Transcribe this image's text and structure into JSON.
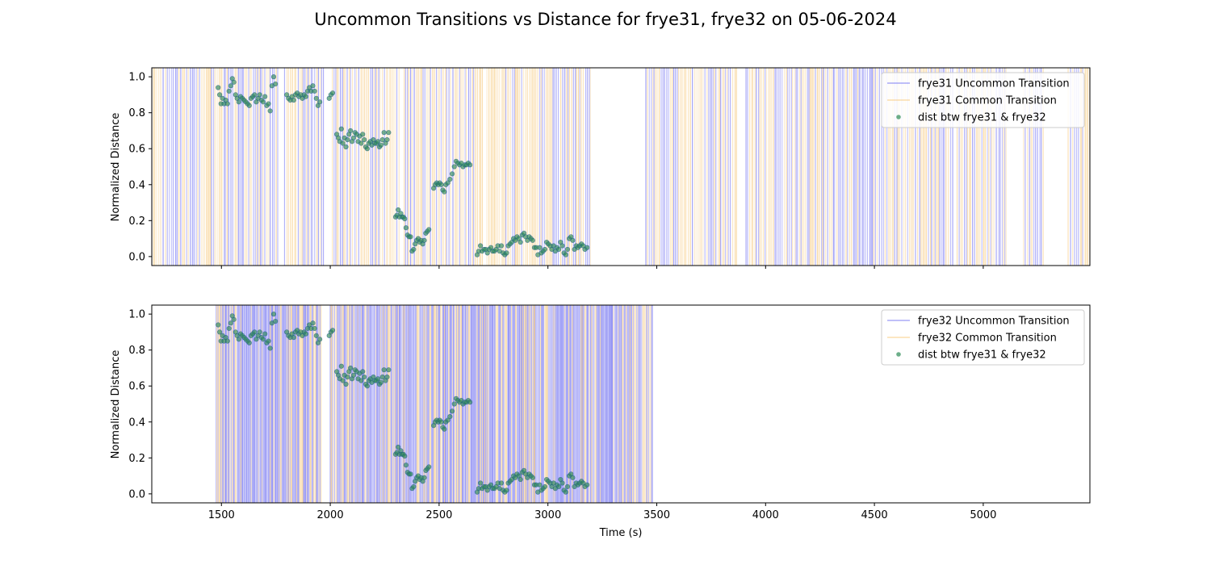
{
  "figure": {
    "title": "Uncommon Transitions vs Distance for frye31, frye32 on 05-06-2024"
  },
  "chart_data": [
    {
      "type": "scatter",
      "panel": "top",
      "xlabel": "",
      "ylabel": "Normalized Distance",
      "xlim": [
        1180,
        5490
      ],
      "ylim": [
        -0.05,
        1.05
      ],
      "xticks": [
        1500,
        2000,
        2500,
        3000,
        3500,
        4000,
        4500,
        5000
      ],
      "xtick_labels_visible": false,
      "yticks": [
        0.0,
        0.2,
        0.4,
        0.6,
        0.8,
        1.0
      ],
      "ytick_labels": [
        "0.0",
        "0.2",
        "0.4",
        "0.6",
        "0.8",
        "1.0"
      ],
      "legend_position": "upper-right",
      "legend": [
        "frye31 Uncommon Transition",
        "frye31 Common Transition",
        "dist btw frye31 & frye32"
      ],
      "colors": {
        "uncommon": "#6464f0",
        "common": "#f5c26b",
        "distance": "#2e8b57"
      },
      "vertical_lines": {
        "ranges": [
          [
            1180,
            1760
          ],
          [
            1790,
            1970
          ],
          [
            2010,
            2325
          ],
          [
            2340,
            2700
          ],
          [
            2720,
            3195
          ],
          [
            3450,
            3870
          ],
          [
            3910,
            4860
          ],
          [
            4880,
            5110
          ],
          [
            5185,
            5280
          ],
          [
            5390,
            5490
          ]
        ],
        "spacing": 8,
        "uncommon_fraction": 0.45
      },
      "series": [
        {
          "name": "dist btw frye31 & frye32",
          "points": []
        }
      ]
    },
    {
      "type": "scatter",
      "panel": "bottom",
      "xlabel": "Time (s)",
      "ylabel": "Normalized Distance",
      "xlim": [
        1180,
        5490
      ],
      "ylim": [
        -0.05,
        1.05
      ],
      "xticks": [
        1500,
        2000,
        2500,
        3000,
        3500,
        4000,
        4500,
        5000
      ],
      "xtick_labels": [
        "1500",
        "2000",
        "2500",
        "3000",
        "3500",
        "4000",
        "4500",
        "5000"
      ],
      "yticks": [
        0.0,
        0.2,
        0.4,
        0.6,
        0.8,
        1.0
      ],
      "ytick_labels": [
        "0.0",
        "0.2",
        "0.4",
        "0.6",
        "0.8",
        "1.0"
      ],
      "legend_position": "upper-right",
      "legend": [
        "frye32 Uncommon Transition",
        "frye32 Common Transition",
        "dist btw frye31 & frye32"
      ],
      "colors": {
        "uncommon": "#6464f0",
        "common": "#f5c26b",
        "distance": "#2e8b57"
      },
      "vertical_lines": {
        "ranges": [
          [
            1475,
            1960
          ],
          [
            2000,
            3480
          ]
        ],
        "spacing": 4,
        "uncommon_fraction": 0.7
      },
      "series": [
        {
          "name": "dist btw frye31 & frye32",
          "points": []
        }
      ]
    }
  ],
  "distance_points": [
    [
      1485,
      0.94
    ],
    [
      1492,
      0.9
    ],
    [
      1498,
      0.85
    ],
    [
      1505,
      0.88
    ],
    [
      1512,
      0.85
    ],
    [
      1520,
      0.87
    ],
    [
      1528,
      0.85
    ],
    [
      1535,
      0.92
    ],
    [
      1543,
      0.95
    ],
    [
      1550,
      0.99
    ],
    [
      1557,
      0.97
    ],
    [
      1565,
      0.9
    ],
    [
      1572,
      0.88
    ],
    [
      1580,
      0.86
    ],
    [
      1588,
      0.89
    ],
    [
      1596,
      0.88
    ],
    [
      1604,
      0.87
    ],
    [
      1612,
      0.86
    ],
    [
      1620,
      0.85
    ],
    [
      1628,
      0.84
    ],
    [
      1636,
      0.88
    ],
    [
      1644,
      0.89
    ],
    [
      1652,
      0.9
    ],
    [
      1660,
      0.86
    ],
    [
      1668,
      0.88
    ],
    [
      1676,
      0.9
    ],
    [
      1684,
      0.87
    ],
    [
      1692,
      0.86
    ],
    [
      1700,
      0.89
    ],
    [
      1708,
      0.84
    ],
    [
      1716,
      0.85
    ],
    [
      1724,
      0.81
    ],
    [
      1732,
      0.95
    ],
    [
      1740,
      1.0
    ],
    [
      1748,
      0.96
    ],
    [
      1800,
      0.9
    ],
    [
      1808,
      0.88
    ],
    [
      1816,
      0.87
    ],
    [
      1824,
      0.89
    ],
    [
      1832,
      0.87
    ],
    [
      1840,
      0.9
    ],
    [
      1848,
      0.91
    ],
    [
      1856,
      0.89
    ],
    [
      1864,
      0.9
    ],
    [
      1872,
      0.88
    ],
    [
      1880,
      0.9
    ],
    [
      1888,
      0.89
    ],
    [
      1896,
      0.92
    ],
    [
      1904,
      0.94
    ],
    [
      1912,
      0.92
    ],
    [
      1920,
      0.95
    ],
    [
      1928,
      0.92
    ],
    [
      1936,
      0.88
    ],
    [
      1944,
      0.84
    ],
    [
      1952,
      0.86
    ],
    [
      1995,
      0.88
    ],
    [
      2003,
      0.9
    ],
    [
      2011,
      0.91
    ],
    [
      2030,
      0.68
    ],
    [
      2037,
      0.66
    ],
    [
      2044,
      0.64
    ],
    [
      2051,
      0.71
    ],
    [
      2058,
      0.63
    ],
    [
      2065,
      0.66
    ],
    [
      2072,
      0.61
    ],
    [
      2079,
      0.65
    ],
    [
      2086,
      0.68
    ],
    [
      2093,
      0.7
    ],
    [
      2100,
      0.64
    ],
    [
      2107,
      0.66
    ],
    [
      2114,
      0.69
    ],
    [
      2121,
      0.68
    ],
    [
      2128,
      0.64
    ],
    [
      2135,
      0.67
    ],
    [
      2142,
      0.63
    ],
    [
      2149,
      0.68
    ],
    [
      2156,
      0.65
    ],
    [
      2163,
      0.61
    ],
    [
      2170,
      0.6
    ],
    [
      2177,
      0.63
    ],
    [
      2184,
      0.64
    ],
    [
      2191,
      0.62
    ],
    [
      2198,
      0.65
    ],
    [
      2205,
      0.63
    ],
    [
      2212,
      0.63
    ],
    [
      2219,
      0.64
    ],
    [
      2226,
      0.61
    ],
    [
      2233,
      0.62
    ],
    [
      2240,
      0.65
    ],
    [
      2247,
      0.69
    ],
    [
      2254,
      0.63
    ],
    [
      2261,
      0.65
    ],
    [
      2268,
      0.69
    ],
    [
      2300,
      0.22
    ],
    [
      2306,
      0.23
    ],
    [
      2312,
      0.26
    ],
    [
      2318,
      0.22
    ],
    [
      2324,
      0.24
    ],
    [
      2330,
      0.22
    ],
    [
      2336,
      0.22
    ],
    [
      2342,
      0.21
    ],
    [
      2348,
      0.16
    ],
    [
      2355,
      0.12
    ],
    [
      2362,
      0.11
    ],
    [
      2369,
      0.11
    ],
    [
      2376,
      0.03
    ],
    [
      2383,
      0.04
    ],
    [
      2390,
      0.07
    ],
    [
      2397,
      0.09
    ],
    [
      2404,
      0.1
    ],
    [
      2411,
      0.08
    ],
    [
      2418,
      0.09
    ],
    [
      2425,
      0.07
    ],
    [
      2432,
      0.09
    ],
    [
      2439,
      0.13
    ],
    [
      2446,
      0.14
    ],
    [
      2453,
      0.15
    ],
    [
      2475,
      0.38
    ],
    [
      2482,
      0.4
    ],
    [
      2489,
      0.41
    ],
    [
      2496,
      0.4
    ],
    [
      2503,
      0.41
    ],
    [
      2510,
      0.4
    ],
    [
      2517,
      0.37
    ],
    [
      2524,
      0.36
    ],
    [
      2531,
      0.4
    ],
    [
      2540,
      0.41
    ],
    [
      2550,
      0.43
    ],
    [
      2560,
      0.46
    ],
    [
      2570,
      0.5
    ],
    [
      2578,
      0.53
    ],
    [
      2586,
      0.52
    ],
    [
      2594,
      0.51
    ],
    [
      2602,
      0.52
    ],
    [
      2610,
      0.5
    ],
    [
      2618,
      0.51
    ],
    [
      2626,
      0.51
    ],
    [
      2634,
      0.52
    ],
    [
      2642,
      0.51
    ],
    [
      2675,
      0.01
    ],
    [
      2682,
      0.03
    ],
    [
      2690,
      0.06
    ],
    [
      2698,
      0.03
    ],
    [
      2706,
      0.04
    ],
    [
      2714,
      0.04
    ],
    [
      2722,
      0.02
    ],
    [
      2730,
      0.04
    ],
    [
      2738,
      0.05
    ],
    [
      2746,
      0.03
    ],
    [
      2754,
      0.03
    ],
    [
      2762,
      0.04
    ],
    [
      2770,
      0.06
    ],
    [
      2778,
      0.03
    ],
    [
      2786,
      0.06
    ],
    [
      2794,
      0.02
    ],
    [
      2802,
      0.01
    ],
    [
      2810,
      0.02
    ],
    [
      2818,
      0.06
    ],
    [
      2826,
      0.07
    ],
    [
      2834,
      0.08
    ],
    [
      2842,
      0.1
    ],
    [
      2850,
      0.09
    ],
    [
      2858,
      0.11
    ],
    [
      2866,
      0.1
    ],
    [
      2874,
      0.08
    ],
    [
      2882,
      0.12
    ],
    [
      2890,
      0.13
    ],
    [
      2898,
      0.11
    ],
    [
      2906,
      0.09
    ],
    [
      2914,
      0.11
    ],
    [
      2922,
      0.1
    ],
    [
      2930,
      0.09
    ],
    [
      2938,
      0.05
    ],
    [
      2946,
      0.05
    ],
    [
      2954,
      0.01
    ],
    [
      2962,
      0.05
    ],
    [
      2970,
      0.02
    ],
    [
      2978,
      0.03
    ],
    [
      2986,
      0.04
    ],
    [
      2994,
      0.08
    ],
    [
      3002,
      0.07
    ],
    [
      3010,
      0.06
    ],
    [
      3018,
      0.04
    ],
    [
      3026,
      0.06
    ],
    [
      3034,
      0.03
    ],
    [
      3042,
      0.05
    ],
    [
      3050,
      0.04
    ],
    [
      3058,
      0.08
    ],
    [
      3066,
      0.06
    ],
    [
      3074,
      0.02
    ],
    [
      3082,
      0.01
    ],
    [
      3090,
      0.04
    ],
    [
      3098,
      0.1
    ],
    [
      3106,
      0.11
    ],
    [
      3114,
      0.09
    ],
    [
      3122,
      0.04
    ],
    [
      3130,
      0.06
    ],
    [
      3138,
      0.05
    ],
    [
      3146,
      0.06
    ],
    [
      3154,
      0.07
    ],
    [
      3162,
      0.06
    ],
    [
      3170,
      0.04
    ],
    [
      3180,
      0.05
    ]
  ]
}
